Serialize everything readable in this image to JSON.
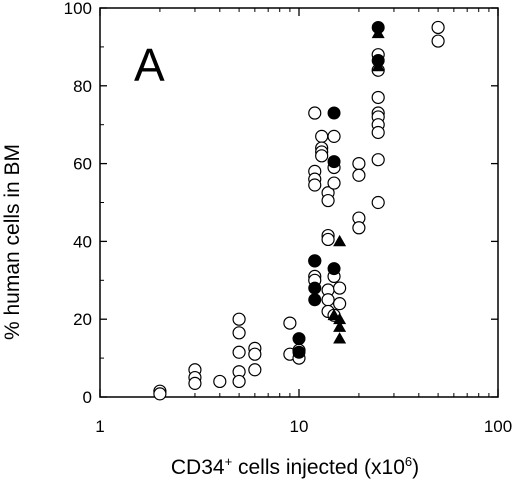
{
  "chart_data": {
    "type": "scatter",
    "panel_label": "A",
    "xlabel": {
      "main": "CD34",
      "sup": "+",
      "rest": " cells injected (x10",
      "exp": "6",
      "close": ")"
    },
    "ylabel": "% human cells in BM",
    "x_scale": "log",
    "xlim": [
      1,
      100
    ],
    "ylim": [
      0,
      100
    ],
    "x_ticks": [
      {
        "value": 1,
        "label": "1"
      },
      {
        "value": 10,
        "label": "10"
      },
      {
        "value": 100,
        "label": "100"
      }
    ],
    "y_ticks": [
      {
        "value": 0,
        "label": "0"
      },
      {
        "value": 20,
        "label": "20"
      },
      {
        "value": 40,
        "label": "40"
      },
      {
        "value": 60,
        "label": "60"
      },
      {
        "value": 80,
        "label": "80"
      },
      {
        "value": 100,
        "label": "100"
      }
    ],
    "grid": false,
    "legend": "none",
    "series": [
      {
        "marker": "open-circle",
        "color": "#000000",
        "points": [
          [
            2,
            1.5
          ],
          [
            2,
            0.8
          ],
          [
            3,
            7
          ],
          [
            3,
            5
          ],
          [
            3,
            3.5
          ],
          [
            4,
            4
          ],
          [
            5,
            20
          ],
          [
            5,
            16.5
          ],
          [
            5,
            11.5
          ],
          [
            5,
            6.5
          ],
          [
            5,
            4
          ],
          [
            6,
            12.5
          ],
          [
            6,
            11
          ],
          [
            6,
            7
          ],
          [
            9,
            19
          ],
          [
            9,
            11
          ],
          [
            10,
            12
          ],
          [
            10,
            10
          ],
          [
            12,
            73
          ],
          [
            12,
            58
          ],
          [
            12,
            56
          ],
          [
            12,
            54.5
          ],
          [
            12,
            35
          ],
          [
            12,
            31
          ],
          [
            12,
            30
          ],
          [
            13,
            67
          ],
          [
            13,
            64
          ],
          [
            13,
            63
          ],
          [
            13,
            62
          ],
          [
            14,
            52.5
          ],
          [
            14,
            50.5
          ],
          [
            14,
            41.5
          ],
          [
            14,
            40.5
          ],
          [
            14,
            27.5
          ],
          [
            14,
            25
          ],
          [
            14,
            22
          ],
          [
            15,
            67
          ],
          [
            15,
            59
          ],
          [
            15,
            55
          ],
          [
            15,
            31
          ],
          [
            15,
            21
          ],
          [
            16,
            28
          ],
          [
            16,
            24
          ],
          [
            20,
            60
          ],
          [
            20,
            57
          ],
          [
            20,
            46
          ],
          [
            20,
            43.5
          ],
          [
            25,
            88
          ],
          [
            25,
            84
          ],
          [
            25,
            77
          ],
          [
            25,
            73
          ],
          [
            25,
            72
          ],
          [
            25,
            70
          ],
          [
            25,
            68
          ],
          [
            25,
            61
          ],
          [
            25,
            50
          ],
          [
            50,
            95
          ],
          [
            50,
            91.5
          ]
        ]
      },
      {
        "marker": "filled-circle",
        "color": "#000000",
        "points": [
          [
            10,
            15
          ],
          [
            10,
            11.5
          ],
          [
            12,
            35
          ],
          [
            12,
            28
          ],
          [
            12,
            25
          ],
          [
            15,
            73
          ],
          [
            15,
            60.5
          ],
          [
            15,
            33
          ],
          [
            25,
            95
          ],
          [
            25,
            86.5
          ]
        ]
      },
      {
        "marker": "filled-triangle",
        "color": "#000000",
        "points": [
          [
            15,
            21
          ],
          [
            16,
            40
          ],
          [
            16,
            20
          ],
          [
            16,
            18
          ],
          [
            16,
            15
          ],
          [
            25,
            93.5
          ],
          [
            25,
            85
          ]
        ]
      }
    ]
  }
}
